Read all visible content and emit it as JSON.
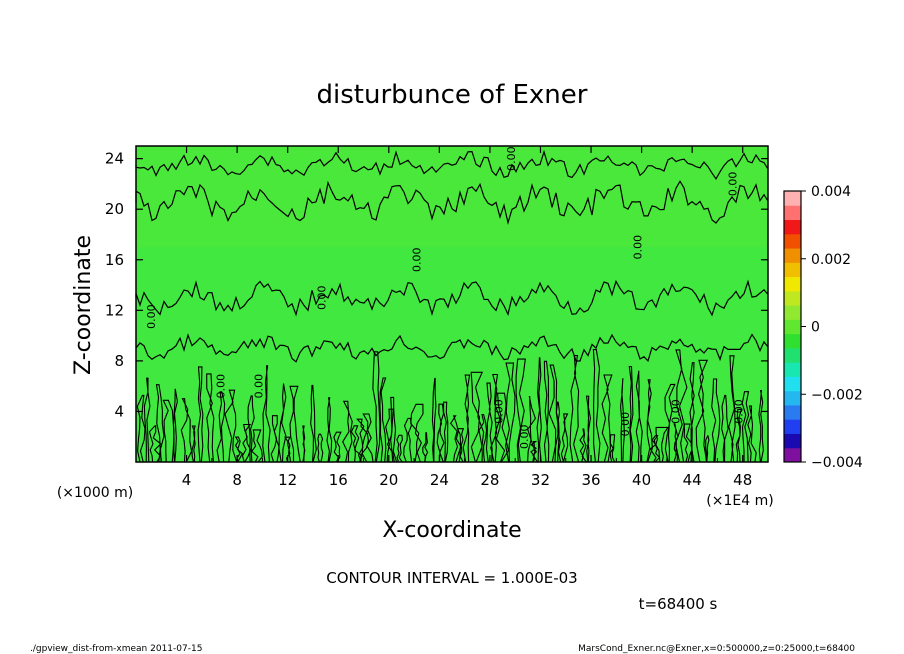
{
  "chart_data": {
    "type": "heatmap",
    "title": "disturbunce of Exner",
    "xlabel": "X-coordinate",
    "ylabel": "Z-coordinate",
    "x_unit_left": "(×1000 m)",
    "x_unit_right": "(×1E4 m)",
    "xlim": [
      0,
      50
    ],
    "ylim": [
      0,
      25
    ],
    "xticks": [
      "4",
      "8",
      "12",
      "16",
      "20",
      "24",
      "28",
      "32",
      "36",
      "40",
      "44",
      "48"
    ],
    "yticks": [
      "4",
      "8",
      "12",
      "16",
      "20",
      "24"
    ],
    "contour_labels": [
      "0.00"
    ],
    "contour_interval_text": "CONTOUR INTERVAL = 1.000E-03",
    "time_text": "t=68400 s",
    "colorbar": {
      "range": [
        -0.004,
        0.004
      ],
      "tick_labels": [
        "0.004",
        "0.002",
        "0",
        "−0.002",
        "−0.004"
      ],
      "colors": [
        "#7f0f9f",
        "#1a0ab0",
        "#1f3ff0",
        "#2a7af0",
        "#25b8f0",
        "#20e0f0",
        "#18e8b0",
        "#20e070",
        "#30e030",
        "#60e830",
        "#90e830",
        "#c0e820",
        "#f0e800",
        "#f0c000",
        "#f09000",
        "#f05000",
        "#f01818",
        "#ff7070",
        "#ffb0b0"
      ]
    },
    "fill_dominant_color": "#40e840",
    "footer_left": "./gpview_dist-from-xmean  2011-07-15",
    "footer_right": "MarsCond_Exner.nc@Exner,x=0:500000,z=0:25000,t=68400"
  }
}
